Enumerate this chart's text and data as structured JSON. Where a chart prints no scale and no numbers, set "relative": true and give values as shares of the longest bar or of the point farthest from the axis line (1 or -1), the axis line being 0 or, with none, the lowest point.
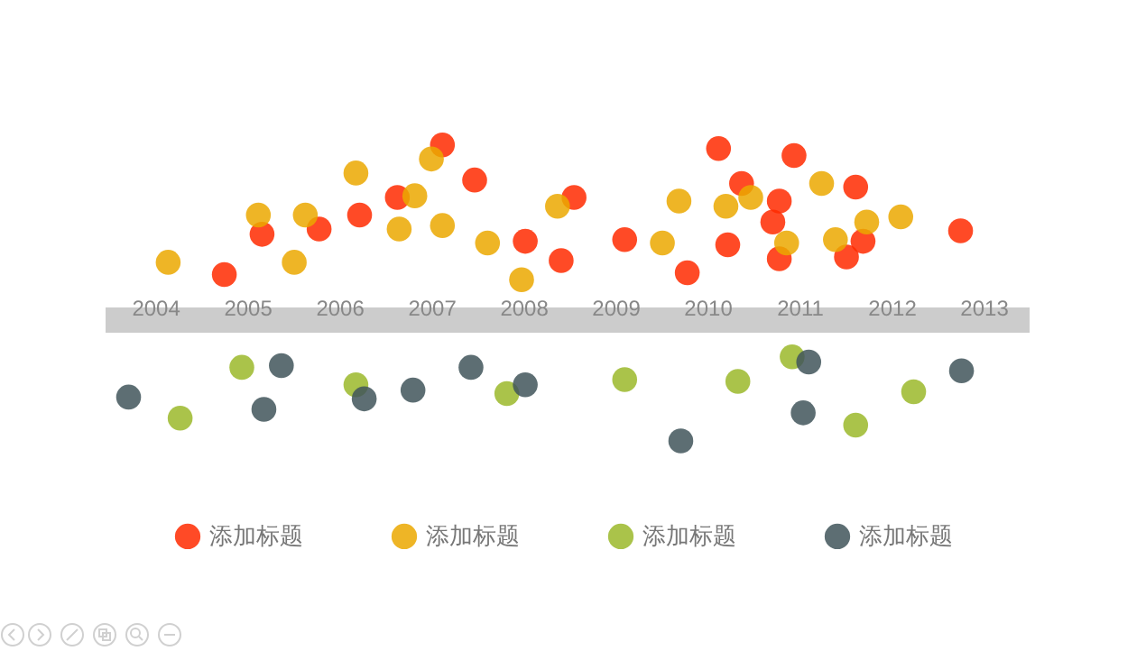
{
  "chart_data": {
    "type": "scatter",
    "relative": true,
    "xlim": [
      2003.45,
      2013.49
    ],
    "xticks": [
      2004,
      2005,
      2006,
      2007,
      2008,
      2009,
      2010,
      2011,
      2012,
      2013
    ],
    "tick_labels": "x",
    "grid": false,
    "legend": "bottom",
    "marker": "circle",
    "series": [
      {
        "name": "添加标题",
        "color": "#ff2a00",
        "x": [
          2004.75,
          2005.16,
          2005.78,
          2006.22,
          2006.63,
          2007.12,
          2007.47,
          2008.02,
          2008.41,
          2008.55,
          2009.1,
          2009.78,
          2010.12,
          2010.22,
          2010.37,
          2010.78,
          2010.71,
          2010.78,
          2010.94,
          2011.61,
          2011.69,
          2011.51,
          2012.75
        ],
        "values": [
          0.26,
          0.49,
          0.52,
          0.6,
          0.7,
          1,
          0.8,
          0.45,
          0.34,
          0.7,
          0.46,
          0.27,
          0.98,
          0.43,
          0.78,
          0.68,
          0.56,
          0.35,
          0.94,
          0.76,
          0.45,
          0.36,
          0.51
        ]
      },
      {
        "name": "添加标题",
        "color": "#eba800",
        "x": [
          2004.14,
          2005.12,
          2005.51,
          2005.63,
          2006.18,
          2006.65,
          2006.82,
          2007.0,
          2007.12,
          2007.61,
          2007.98,
          2008.37,
          2009.51,
          2009.69,
          2010.2,
          2010.47,
          2010.86,
          2011.24,
          2011.39,
          2011.73,
          2012.1
        ],
        "values": [
          0.33,
          0.6,
          0.33,
          0.6,
          0.84,
          0.52,
          0.71,
          0.92,
          0.54,
          0.44,
          0.23,
          0.65,
          0.44,
          0.68,
          0.65,
          0.7,
          0.44,
          0.78,
          0.46,
          0.56,
          0.59
        ]
      },
      {
        "name": "添加标题",
        "color": "#9bb82a",
        "x": [
          2004.27,
          2004.94,
          2006.18,
          2007.82,
          2009.1,
          2010.33,
          2010.92,
          2011.61,
          2012.24
        ],
        "values": [
          -0.56,
          -0.27,
          -0.37,
          -0.42,
          -0.34,
          -0.35,
          -0.21,
          -0.6,
          -0.41
        ]
      },
      {
        "name": "添加标题",
        "color": "#41555a",
        "x": [
          2003.71,
          2005.18,
          2005.37,
          2006.27,
          2006.8,
          2007.43,
          2008.02,
          2009.71,
          2011.1,
          2011.04,
          2012.76
        ],
        "values": [
          -0.44,
          -0.51,
          -0.26,
          -0.45,
          -0.4,
          -0.27,
          -0.37,
          -0.69,
          -0.24,
          -0.53,
          -0.29
        ]
      }
    ]
  }
}
